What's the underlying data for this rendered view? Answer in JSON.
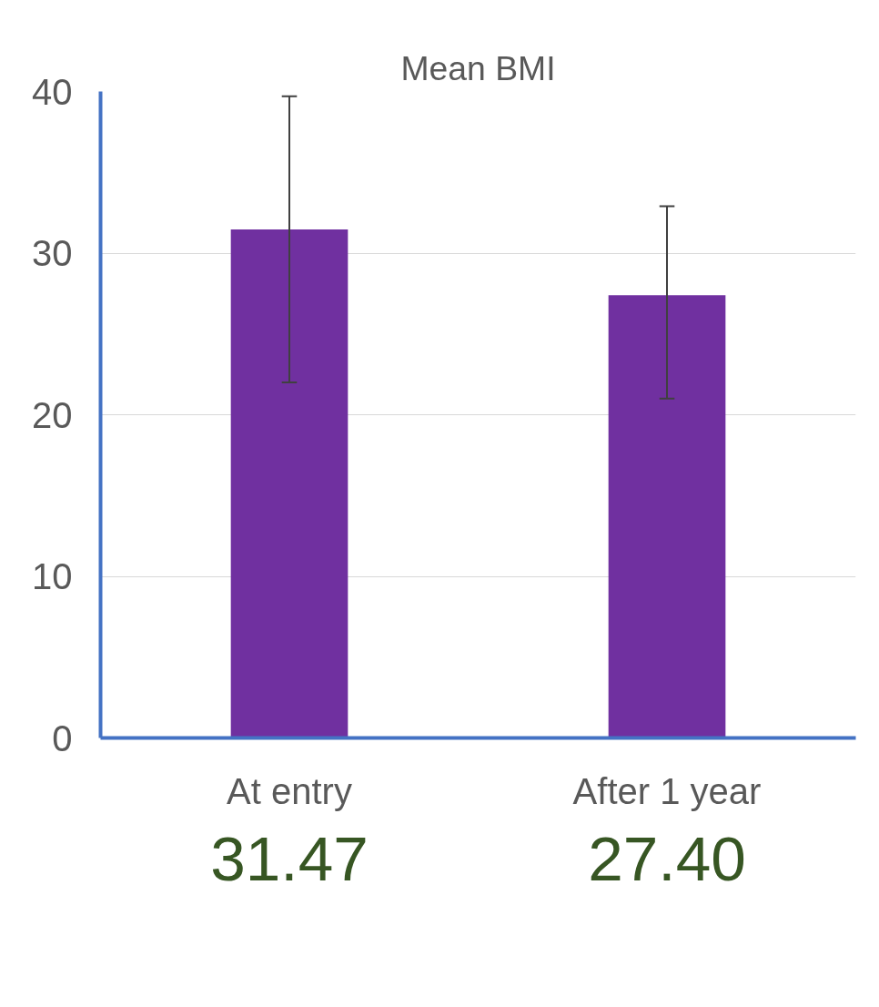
{
  "chart_data": {
    "type": "bar",
    "title": "Mean BMI",
    "categories": [
      "At entry",
      "After 1 year"
    ],
    "values": [
      31.47,
      27.4
    ],
    "color": "#7030a0",
    "errors": [
      [
        22,
        39.7
      ],
      [
        21,
        32.9
      ]
    ],
    "value_labels": [
      "31.47",
      "27.40"
    ],
    "ylim": [
      0,
      40
    ],
    "yticks": [
      0,
      10,
      20,
      30,
      40
    ],
    "grid": "y"
  }
}
